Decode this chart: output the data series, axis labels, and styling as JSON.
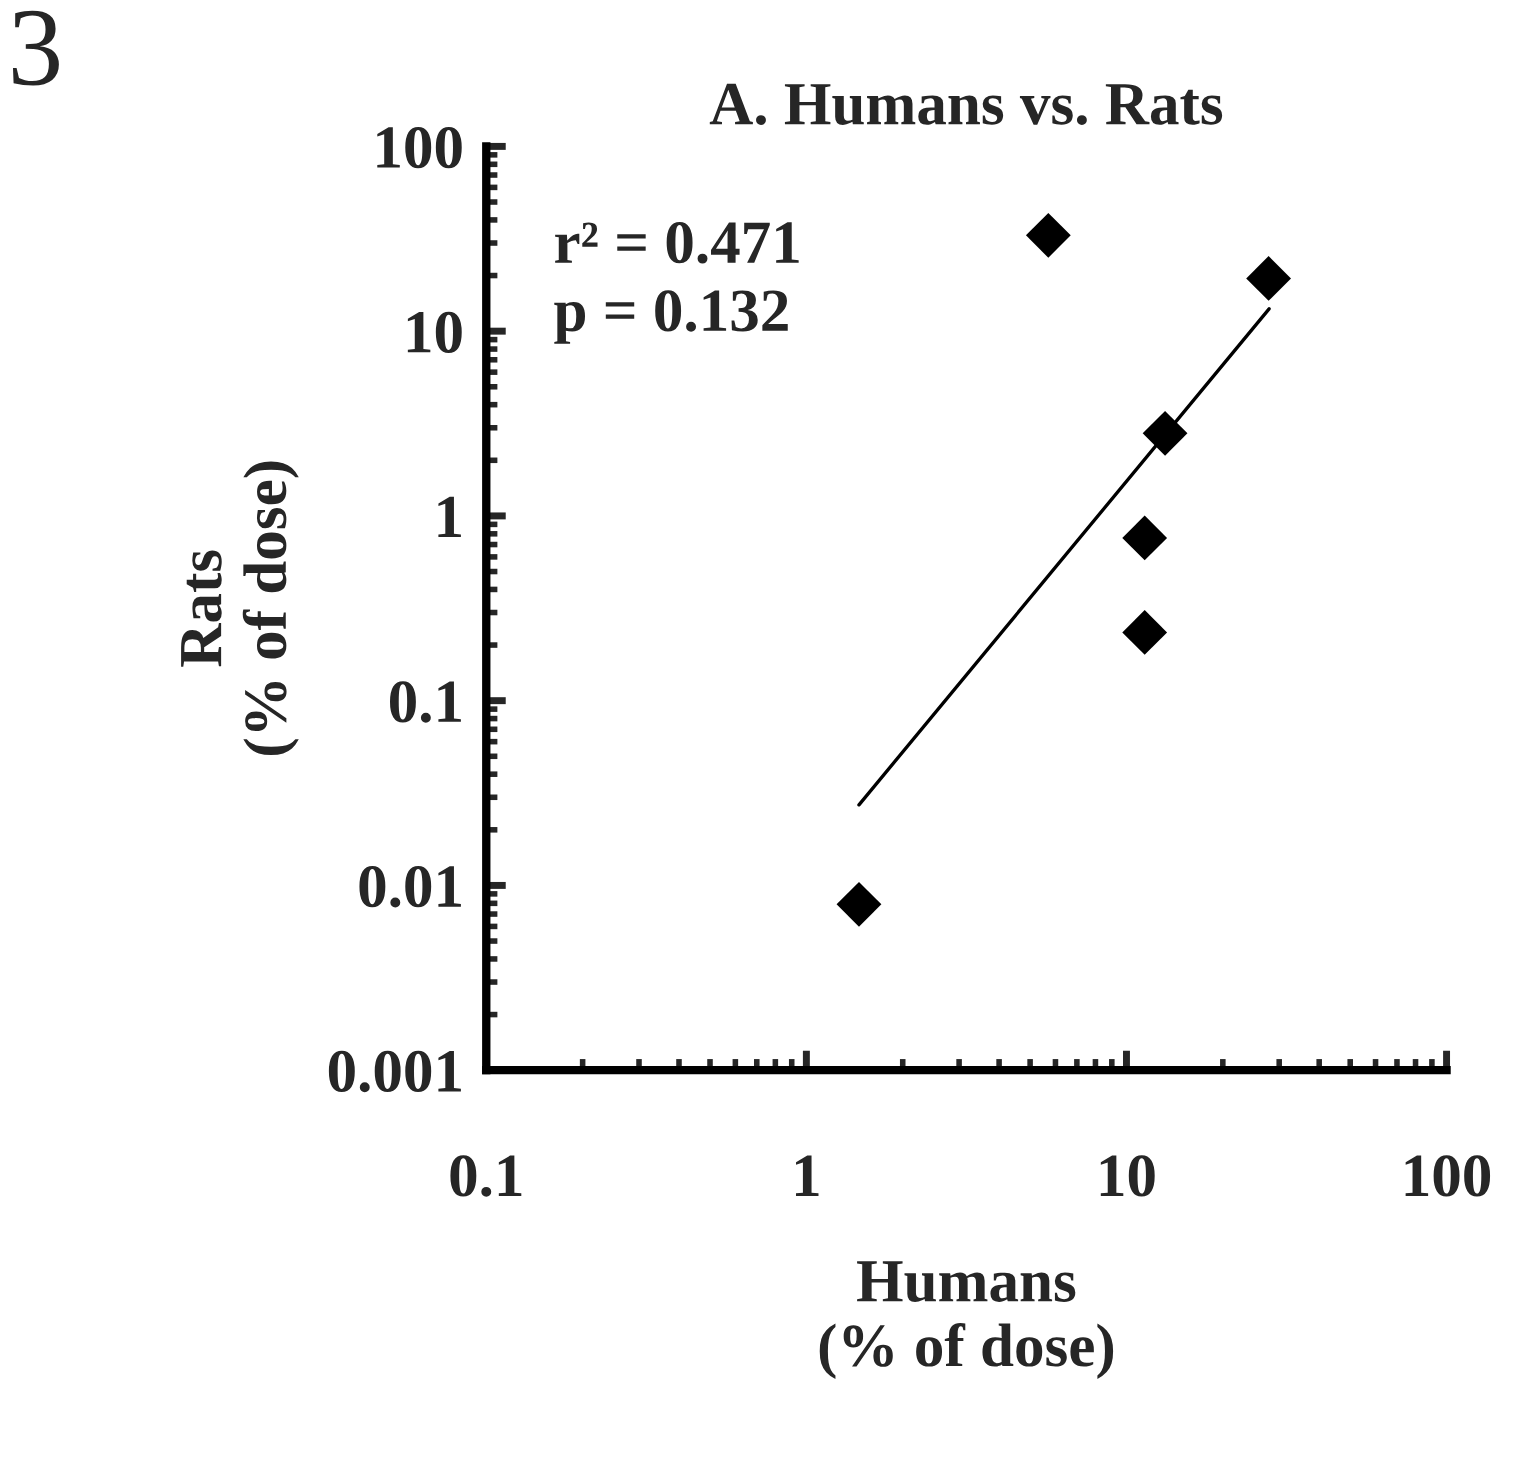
{
  "chart_data": {
    "type": "scatter",
    "title": "A. Humans vs. Rats",
    "xlabel": "Humans\n(% of dose)",
    "ylabel": "Rats\n(% of dose)",
    "log": "xy",
    "marker": "diamond",
    "grid": false,
    "annotations": [
      "3",
      "r² = 0.471\np = 0.132"
    ],
    "x": [
      1.46,
      5.7,
      27.8,
      13.2,
      11.4,
      11.4
    ],
    "series": [
      {
        "color": "#000000",
        "values": [
          0.0079,
          33,
          19.3,
          2.8,
          0.76,
          0.234
        ]
      },
      {
        "type": "line",
        "marker": "none",
        "color": "#000000",
        "x": [
          1.46,
          27.9
        ],
        "values": [
          0.0273,
          13.2
        ]
      }
    ],
    "xlim": [
      0.1,
      100
    ],
    "xticks": [
      0.1,
      1,
      10,
      100
    ],
    "ylim": [
      0.001,
      100
    ],
    "yticks": [
      0.001,
      0.01,
      0.1,
      1,
      10,
      100
    ]
  }
}
